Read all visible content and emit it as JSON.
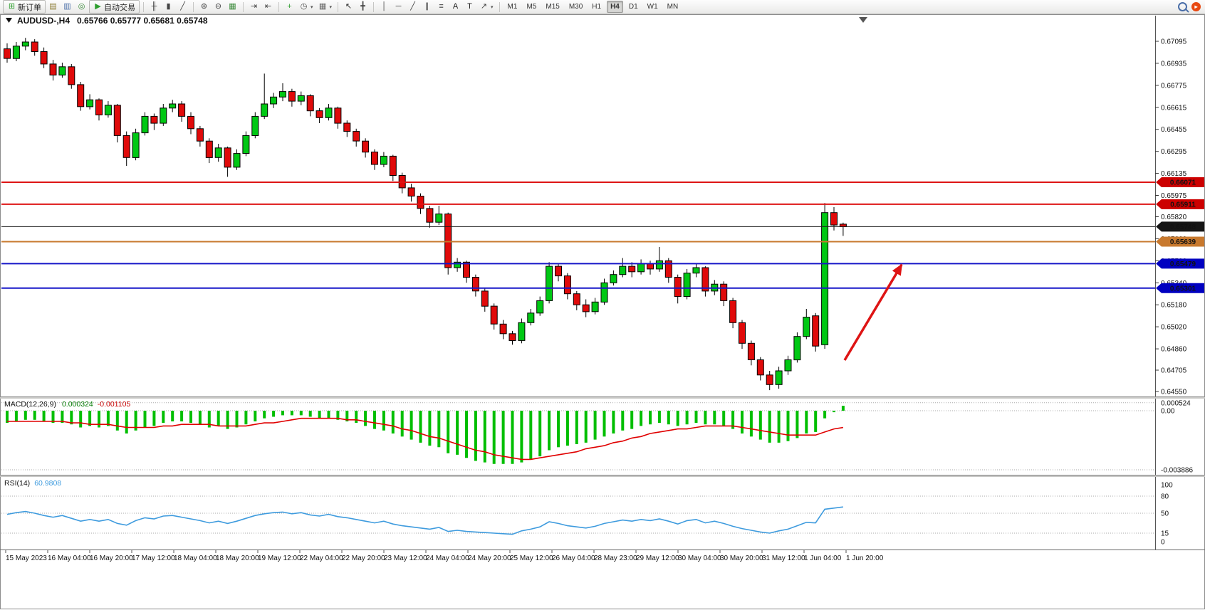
{
  "toolbar": {
    "new_order_label": "新订单",
    "autotrading_label": "自动交易",
    "groups": [
      {
        "items": [
          {
            "name": "new-order-button",
            "icon": "new-order-icon",
            "glyph": "⊞",
            "color": "#2e9e2e",
            "label_key": "new_order_label"
          },
          {
            "name": "market-watch-icon",
            "icon": "market-watch-icon",
            "glyph": "▤",
            "color": "#8a7a30"
          },
          {
            "name": "data-window-icon",
            "icon": "data-window-icon",
            "glyph": "▥",
            "color": "#4a6ea8"
          },
          {
            "name": "navigator-icon",
            "icon": "navigator-icon",
            "glyph": "◎",
            "color": "#3a8a3a"
          },
          {
            "name": "autotrading-button",
            "icon": "autotrading-play-icon",
            "glyph": "▶",
            "color": "#2e9e2e",
            "label_key": "autotrading_label"
          }
        ]
      },
      {
        "items": [
          {
            "name": "bar-chart-icon",
            "icon": "bar-chart-icon",
            "glyph": "╫",
            "color": "#444444"
          },
          {
            "name": "candlestick-chart-icon",
            "icon": "candlestick-chart-icon",
            "glyph": "▮",
            "color": "#444444"
          },
          {
            "name": "line-chart-icon",
            "icon": "line-chart-icon",
            "glyph": "╱",
            "color": "#444444"
          }
        ]
      },
      {
        "items": [
          {
            "name": "zoom-in-icon",
            "icon": "zoom-in-icon",
            "glyph": "⊕",
            "color": "#444444"
          },
          {
            "name": "zoom-out-icon",
            "icon": "zoom-out-icon",
            "glyph": "⊖",
            "color": "#444444"
          },
          {
            "name": "tile-windows-icon",
            "icon": "tile-windows-icon",
            "glyph": "▦",
            "color": "#3a8a3a"
          }
        ]
      },
      {
        "items": [
          {
            "name": "auto-scroll-icon",
            "icon": "auto-scroll-icon",
            "glyph": "⇥",
            "color": "#444444"
          },
          {
            "name": "chart-shift-icon",
            "icon": "chart-shift-icon",
            "glyph": "⇤",
            "color": "#444444"
          }
        ]
      },
      {
        "items": [
          {
            "name": "indicators-button",
            "icon": "indicators-plus-icon",
            "glyph": "+",
            "color": "#2e9e2e"
          },
          {
            "name": "periods-dropdown",
            "icon": "periods-clock-icon",
            "glyph": "◷",
            "color": "#444444",
            "dropdown": true
          },
          {
            "name": "templates-dropdown",
            "icon": "template-chart-icon",
            "glyph": "▦",
            "color": "#666666",
            "dropdown": true
          }
        ]
      },
      {
        "items": [
          {
            "name": "cursor-tool",
            "icon": "cursor-arrow-icon",
            "glyph": "↖",
            "color": "#222222"
          },
          {
            "name": "crosshair-tool",
            "icon": "crosshair-icon",
            "glyph": "╋",
            "color": "#444444"
          }
        ]
      },
      {
        "items": [
          {
            "name": "vertical-line-tool",
            "icon": "vertical-line-icon",
            "glyph": "│",
            "color": "#444444"
          },
          {
            "name": "horizontal-line-tool",
            "icon": "horizontal-line-icon",
            "glyph": "─",
            "color": "#444444"
          },
          {
            "name": "trendline-tool",
            "icon": "trendline-icon",
            "glyph": "╱",
            "color": "#444444"
          },
          {
            "name": "equidistant-channel-tool",
            "icon": "channel-icon",
            "glyph": "∥",
            "color": "#444444"
          },
          {
            "name": "fibonacci-tool",
            "icon": "fibonacci-icon",
            "glyph": "≡",
            "color": "#444444"
          },
          {
            "name": "text-tool",
            "icon": "text-icon",
            "glyph": "A",
            "color": "#222222"
          },
          {
            "name": "label-tool",
            "icon": "label-icon",
            "glyph": "T",
            "color": "#222222"
          },
          {
            "name": "arrows-dropdown",
            "icon": "arrow-object-icon",
            "glyph": "↗",
            "color": "#444444",
            "dropdown": true
          }
        ]
      }
    ],
    "timeframes": [
      "M1",
      "M5",
      "M15",
      "M30",
      "H1",
      "H4",
      "D1",
      "W1",
      "MN"
    ],
    "active_timeframe": "H4"
  },
  "chart": {
    "title": "AUDUSD-,H4",
    "ohlc_text": "0.65766 0.65777 0.65681 0.65748"
  },
  "price_axis_labels": [
    "0.67095",
    "0.66935",
    "0.66775",
    "0.66615",
    "0.66455",
    "0.66295",
    "0.66135",
    "0.65975",
    "0.65820",
    "0.65660",
    "0.65500",
    "0.65340",
    "0.65180",
    "0.65020",
    "0.64860",
    "0.64705",
    "0.64550"
  ],
  "levels": [
    {
      "label": "0.66071",
      "value": 0.66071,
      "line_color": "#DE1414",
      "badge_color": "#CC0000",
      "width": 2
    },
    {
      "label": "0.65911",
      "value": 0.65911,
      "line_color": "#DE1414",
      "badge_color": "#CC0000",
      "width": 2
    },
    {
      "label": "0.65748",
      "value": 0.65748,
      "line_color": "#1A1A1A",
      "badge_color": "#151515",
      "width": 1
    },
    {
      "label": "0.65639",
      "value": 0.65639,
      "line_color": "#C8792E",
      "badge_color": "#C8792E",
      "width": 2
    },
    {
      "label": "0.65479",
      "value": 0.65479,
      "line_color": "#1616C8",
      "badge_color": "#0000C0",
      "width": 2
    },
    {
      "label": "0.65301",
      "value": 0.65301,
      "line_color": "#1616C8",
      "badge_color": "#0000C0",
      "width": 2
    }
  ],
  "time_axis_labels": [
    "15 May 2023",
    "16 May 04:00",
    "16 May 20:00",
    "17 May 12:00",
    "18 May 04:00",
    "18 May 20:00",
    "19 May 12:00",
    "22 May 04:00",
    "22 May 20:00",
    "23 May 12:00",
    "24 May 04:00",
    "24 May 20:00",
    "25 May 12:00",
    "26 May 04:00",
    "28 May 23:00",
    "29 May 12:00",
    "30 May 04:00",
    "30 May 20:00",
    "31 May 12:00",
    "1 Jun 04:00",
    "1 Jun 20:00"
  ],
  "macd": {
    "label": "MACD(12,26,9)",
    "value_main": "0.000324",
    "value_signal": "-0.001105",
    "axis_labels": [
      "0.000524",
      "0.00",
      "-0.003886"
    ],
    "hist_color": "#00BE00",
    "signal_color": "#E00000",
    "histogram": [
      -0.0008,
      -0.0007,
      -0.0006,
      -0.0006,
      -0.0007,
      -0.0008,
      -0.0008,
      -0.0009,
      -0.0011,
      -0.001,
      -0.0011,
      -0.001,
      -0.0013,
      -0.0015,
      -0.0013,
      -0.0011,
      -0.001,
      -0.0008,
      -0.0007,
      -0.0007,
      -0.0008,
      -0.0009,
      -0.0011,
      -0.001,
      -0.0012,
      -0.0011,
      -0.0009,
      -0.0007,
      -0.0005,
      -0.0004,
      -0.0003,
      -0.0003,
      -0.0003,
      -0.0004,
      -0.0005,
      -0.0005,
      -0.0006,
      -0.0007,
      -0.0008,
      -0.001,
      -0.0012,
      -0.0013,
      -0.0015,
      -0.0017,
      -0.0019,
      -0.0021,
      -0.0023,
      -0.0024,
      -0.0028,
      -0.0029,
      -0.0031,
      -0.0033,
      -0.0034,
      -0.0035,
      -0.0035,
      -0.0035,
      -0.0034,
      -0.0032,
      -0.003,
      -0.0026,
      -0.0024,
      -0.0023,
      -0.0022,
      -0.0021,
      -0.0019,
      -0.0017,
      -0.0015,
      -0.0013,
      -0.0012,
      -0.001,
      -0.0009,
      -0.0008,
      -0.0009,
      -0.001,
      -0.0009,
      -0.0008,
      -0.0009,
      -0.0009,
      -0.001,
      -0.0012,
      -0.0015,
      -0.0017,
      -0.0019,
      -0.0021,
      -0.0021,
      -0.002,
      -0.0018,
      -0.0015,
      -0.0014,
      -0.0005,
      -0.0001,
      0.000324
    ],
    "signal": [
      -0.0007,
      -0.0007,
      -0.0007,
      -0.0007,
      -0.0007,
      -0.0007,
      -0.0007,
      -0.0008,
      -0.0008,
      -0.0009,
      -0.0009,
      -0.0009,
      -0.001,
      -0.0011,
      -0.0011,
      -0.0011,
      -0.0011,
      -0.001,
      -0.001,
      -0.0009,
      -0.0009,
      -0.0009,
      -0.0009,
      -0.001,
      -0.001,
      -0.001,
      -0.001,
      -0.0009,
      -0.0008,
      -0.0008,
      -0.0007,
      -0.0006,
      -0.0005,
      -0.0005,
      -0.0005,
      -0.0005,
      -0.0005,
      -0.0006,
      -0.0006,
      -0.0007,
      -0.0008,
      -0.0009,
      -0.001,
      -0.0012,
      -0.0013,
      -0.0015,
      -0.0017,
      -0.0018,
      -0.002,
      -0.0022,
      -0.0024,
      -0.0026,
      -0.0027,
      -0.0029,
      -0.003,
      -0.0031,
      -0.0032,
      -0.0032,
      -0.0031,
      -0.003,
      -0.0029,
      -0.0028,
      -0.0027,
      -0.0025,
      -0.0024,
      -0.0023,
      -0.0021,
      -0.002,
      -0.0018,
      -0.0017,
      -0.0015,
      -0.0014,
      -0.0013,
      -0.0012,
      -0.0012,
      -0.0011,
      -0.001,
      -0.001,
      -0.001,
      -0.001,
      -0.0011,
      -0.0012,
      -0.0013,
      -0.0014,
      -0.0015,
      -0.0016,
      -0.0016,
      -0.0016,
      -0.0016,
      -0.0014,
      -0.0012,
      -0.001105
    ]
  },
  "rsi": {
    "label": "RSI(14)",
    "value": "60.9808",
    "axis_labels": [
      "100",
      "80",
      "50",
      "15",
      "0"
    ],
    "levels": [
      80,
      50,
      15
    ],
    "color": "#3E9BDE",
    "series": [
      48,
      51,
      53,
      50,
      46,
      43,
      46,
      41,
      36,
      39,
      36,
      39,
      32,
      29,
      37,
      42,
      40,
      45,
      46,
      43,
      40,
      37,
      33,
      36,
      32,
      36,
      41,
      46,
      49,
      51,
      52,
      49,
      51,
      47,
      45,
      48,
      44,
      42,
      39,
      36,
      33,
      36,
      31,
      28,
      26,
      24,
      22,
      25,
      18,
      20,
      18,
      17,
      16,
      15,
      14,
      13,
      19,
      22,
      26,
      35,
      32,
      28,
      26,
      24,
      27,
      32,
      35,
      38,
      36,
      39,
      37,
      40,
      36,
      31,
      37,
      39,
      33,
      36,
      32,
      27,
      23,
      20,
      17,
      15,
      19,
      22,
      28,
      34,
      33,
      57,
      59,
      60.9808
    ]
  },
  "annotation_arrow": {
    "color": "#DE1414"
  },
  "chart_data": {
    "type": "candlestick",
    "symbol": "AUDUSD-",
    "period": "H4",
    "title": "AUDUSD-,H4",
    "ohlc_current": {
      "open": 0.65766,
      "high": 0.65777,
      "low": 0.65681,
      "close": 0.65748
    },
    "price_range": [
      0.6455,
      0.67095
    ],
    "up_color": "#00C814",
    "down_color": "#E00A0A",
    "outline_color": "#000000",
    "candles": [
      [
        0.6704,
        0.6708,
        0.6694,
        0.6697
      ],
      [
        0.6697,
        0.6709,
        0.6695,
        0.6706
      ],
      [
        0.6706,
        0.6712,
        0.6703,
        0.6709
      ],
      [
        0.6709,
        0.6711,
        0.6699,
        0.6702
      ],
      [
        0.6702,
        0.6705,
        0.669,
        0.6693
      ],
      [
        0.6693,
        0.6696,
        0.6681,
        0.6685
      ],
      [
        0.6685,
        0.6694,
        0.6683,
        0.6691
      ],
      [
        0.6691,
        0.6693,
        0.6675,
        0.6678
      ],
      [
        0.6678,
        0.668,
        0.6659,
        0.6662
      ],
      [
        0.6662,
        0.6671,
        0.666,
        0.6667
      ],
      [
        0.6667,
        0.6668,
        0.6652,
        0.6656
      ],
      [
        0.6656,
        0.6666,
        0.6654,
        0.6663
      ],
      [
        0.6663,
        0.6664,
        0.6636,
        0.6641
      ],
      [
        0.6641,
        0.6644,
        0.6619,
        0.6625
      ],
      [
        0.6625,
        0.6646,
        0.6623,
        0.6643
      ],
      [
        0.6643,
        0.6658,
        0.6641,
        0.6655
      ],
      [
        0.6655,
        0.6657,
        0.6645,
        0.665
      ],
      [
        0.665,
        0.6664,
        0.6648,
        0.6661
      ],
      [
        0.6661,
        0.6667,
        0.6658,
        0.6664
      ],
      [
        0.6664,
        0.6666,
        0.6651,
        0.6655
      ],
      [
        0.6655,
        0.6658,
        0.6642,
        0.6646
      ],
      [
        0.6646,
        0.6648,
        0.6633,
        0.6637
      ],
      [
        0.6637,
        0.6639,
        0.6621,
        0.6625
      ],
      [
        0.6625,
        0.6635,
        0.6622,
        0.6632
      ],
      [
        0.6632,
        0.6633,
        0.6611,
        0.6618
      ],
      [
        0.6618,
        0.6631,
        0.6616,
        0.6628
      ],
      [
        0.6628,
        0.6644,
        0.6626,
        0.6641
      ],
      [
        0.6641,
        0.6658,
        0.6639,
        0.6655
      ],
      [
        0.6655,
        0.6686,
        0.6653,
        0.6664
      ],
      [
        0.6664,
        0.6672,
        0.6661,
        0.6669
      ],
      [
        0.6669,
        0.6679,
        0.6666,
        0.6673
      ],
      [
        0.6673,
        0.6675,
        0.6662,
        0.6666
      ],
      [
        0.6666,
        0.6673,
        0.6663,
        0.667
      ],
      [
        0.667,
        0.6671,
        0.6655,
        0.6659
      ],
      [
        0.6659,
        0.6661,
        0.665,
        0.6654
      ],
      [
        0.6654,
        0.6664,
        0.6652,
        0.6661
      ],
      [
        0.6661,
        0.6662,
        0.6646,
        0.665
      ],
      [
        0.665,
        0.6652,
        0.664,
        0.6644
      ],
      [
        0.6644,
        0.6646,
        0.6633,
        0.6637
      ],
      [
        0.6637,
        0.6639,
        0.6625,
        0.6629
      ],
      [
        0.6629,
        0.6631,
        0.6616,
        0.662
      ],
      [
        0.662,
        0.6629,
        0.6618,
        0.6626
      ],
      [
        0.6626,
        0.6627,
        0.6608,
        0.6612
      ],
      [
        0.6612,
        0.6614,
        0.6599,
        0.6603
      ],
      [
        0.6603,
        0.6606,
        0.6593,
        0.6597
      ],
      [
        0.6597,
        0.6599,
        0.6584,
        0.6588
      ],
      [
        0.6588,
        0.659,
        0.6574,
        0.6578
      ],
      [
        0.6578,
        0.659,
        0.6576,
        0.6584
      ],
      [
        0.6584,
        0.6585,
        0.654,
        0.6545
      ],
      [
        0.6545,
        0.6552,
        0.6542,
        0.6549
      ],
      [
        0.6549,
        0.655,
        0.6534,
        0.6538
      ],
      [
        0.6538,
        0.654,
        0.6524,
        0.6528
      ],
      [
        0.6528,
        0.653,
        0.6513,
        0.6517
      ],
      [
        0.6517,
        0.6519,
        0.65,
        0.6504
      ],
      [
        0.6504,
        0.6507,
        0.6493,
        0.6497
      ],
      [
        0.6497,
        0.6499,
        0.6489,
        0.6492
      ],
      [
        0.6492,
        0.6508,
        0.649,
        0.6505
      ],
      [
        0.6505,
        0.6515,
        0.6503,
        0.6512
      ],
      [
        0.6512,
        0.6524,
        0.651,
        0.6521
      ],
      [
        0.6521,
        0.6549,
        0.6519,
        0.6546
      ],
      [
        0.6546,
        0.6548,
        0.6535,
        0.6539
      ],
      [
        0.6539,
        0.6541,
        0.6522,
        0.6526
      ],
      [
        0.6526,
        0.6528,
        0.6514,
        0.6518
      ],
      [
        0.6518,
        0.6522,
        0.6509,
        0.6513
      ],
      [
        0.6513,
        0.6523,
        0.6511,
        0.652
      ],
      [
        0.652,
        0.6537,
        0.6518,
        0.6534
      ],
      [
        0.6534,
        0.6543,
        0.6532,
        0.654
      ],
      [
        0.654,
        0.6552,
        0.6538,
        0.6546
      ],
      [
        0.6546,
        0.6549,
        0.6538,
        0.6542
      ],
      [
        0.6542,
        0.6551,
        0.654,
        0.6548
      ],
      [
        0.6548,
        0.655,
        0.654,
        0.6544
      ],
      [
        0.6544,
        0.656,
        0.6542,
        0.655
      ],
      [
        0.655,
        0.6552,
        0.6534,
        0.6538
      ],
      [
        0.6538,
        0.654,
        0.6519,
        0.6524
      ],
      [
        0.6524,
        0.6544,
        0.6522,
        0.6541
      ],
      [
        0.6541,
        0.6548,
        0.6538,
        0.6545
      ],
      [
        0.6545,
        0.6546,
        0.6524,
        0.6528
      ],
      [
        0.6528,
        0.6536,
        0.6525,
        0.6533
      ],
      [
        0.6533,
        0.6535,
        0.6517,
        0.6521
      ],
      [
        0.6521,
        0.6523,
        0.6501,
        0.6505
      ],
      [
        0.6505,
        0.6507,
        0.6486,
        0.649
      ],
      [
        0.649,
        0.6492,
        0.6474,
        0.6478
      ],
      [
        0.6478,
        0.648,
        0.6463,
        0.6467
      ],
      [
        0.6467,
        0.647,
        0.6456,
        0.646
      ],
      [
        0.646,
        0.6473,
        0.6457,
        0.647
      ],
      [
        0.647,
        0.6481,
        0.6467,
        0.6478
      ],
      [
        0.6478,
        0.6498,
        0.6476,
        0.6495
      ],
      [
        0.6495,
        0.6515,
        0.6493,
        0.6509
      ],
      [
        0.651,
        0.6512,
        0.6484,
        0.6488
      ],
      [
        0.6489,
        0.6592,
        0.6486,
        0.6585
      ],
      [
        0.6585,
        0.6589,
        0.6572,
        0.6576
      ],
      [
        0.65766,
        0.65777,
        0.65681,
        0.65748
      ]
    ]
  }
}
